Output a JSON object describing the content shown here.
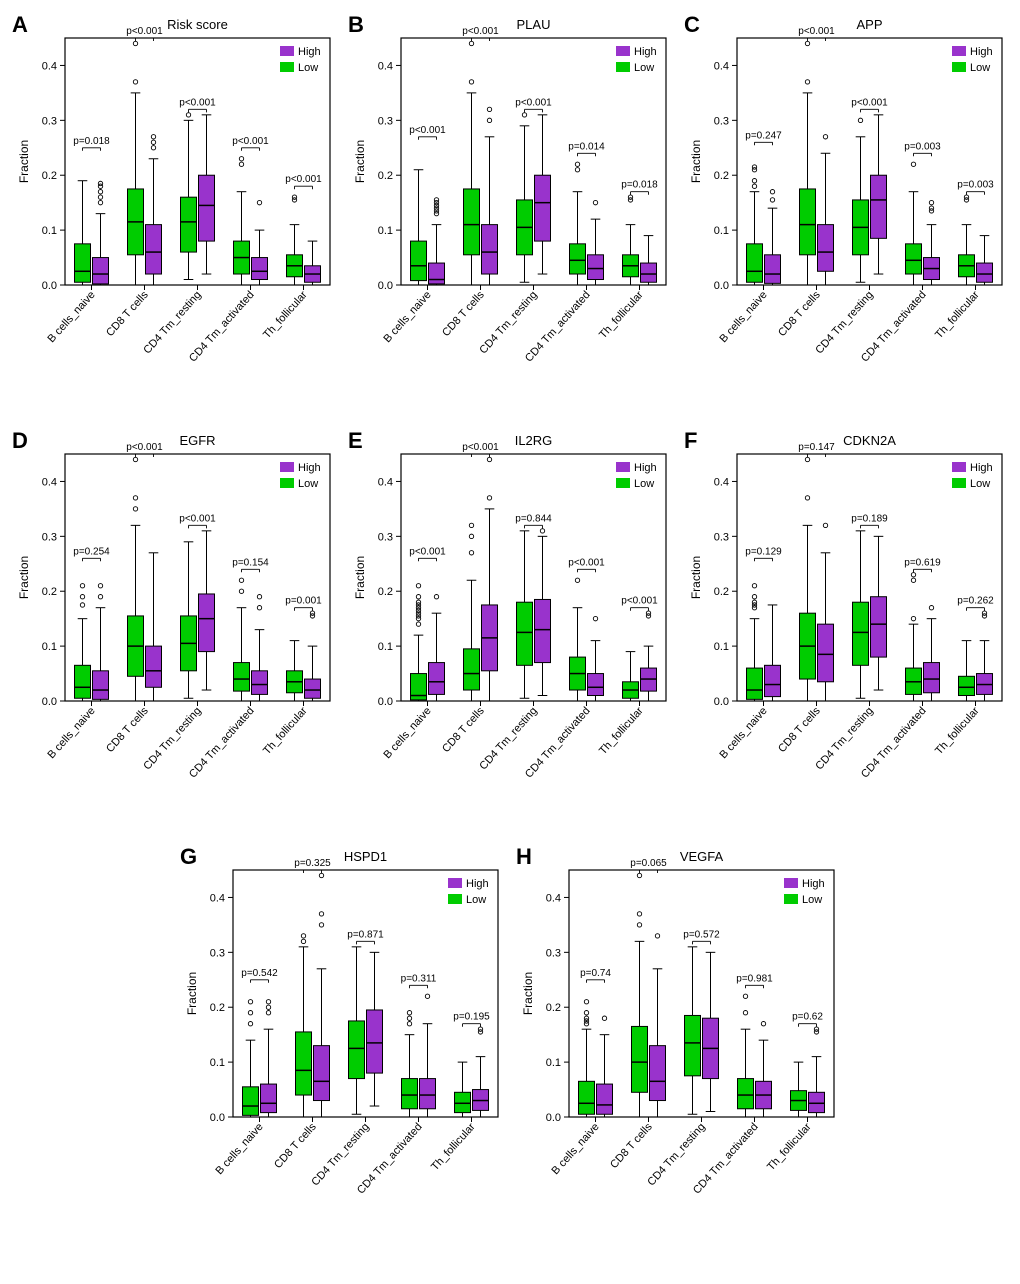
{
  "global": {
    "categories": [
      "B cells_naive",
      "CD8 T cells",
      "CD4 Tm_resting",
      "CD4 Tm_activated",
      "Th_follicular"
    ],
    "ylabel": "Fraction",
    "ylim": [
      0,
      0.45
    ],
    "yticks": [
      0.0,
      0.1,
      0.2,
      0.3,
      0.4
    ],
    "ytick_labels": [
      "0.0",
      "0.1",
      "0.2",
      "0.3",
      "0.4"
    ],
    "legend_labels": [
      "High",
      "Low"
    ],
    "colors": {
      "high": "#9933cc",
      "low": "#00cc00",
      "axis": "#000000",
      "bg": "#ffffff"
    },
    "label_fontsize": 12,
    "tick_fontsize": 11,
    "title_fontsize": 13,
    "pvalue_fontsize": 10
  },
  "panels": [
    {
      "id": "A",
      "title": "Risk score",
      "legend_order": [
        "high",
        "low"
      ],
      "pvalues": [
        "p=0.018",
        "p<0.001",
        "p<0.001",
        "p<0.001",
        "p<0.001"
      ],
      "pvalue_y": [
        0.25,
        0.45,
        0.32,
        0.25,
        0.18
      ],
      "low": [
        {
          "q1": 0.005,
          "med": 0.025,
          "q3": 0.075,
          "lw": 0,
          "uw": 0.19,
          "out": []
        },
        {
          "q1": 0.055,
          "med": 0.115,
          "q3": 0.175,
          "lw": 0,
          "uw": 0.35,
          "out": [
            0.37,
            0.44
          ]
        },
        {
          "q1": 0.06,
          "med": 0.115,
          "q3": 0.16,
          "lw": 0.01,
          "uw": 0.3,
          "out": [
            0.31
          ]
        },
        {
          "q1": 0.02,
          "med": 0.05,
          "q3": 0.08,
          "lw": 0,
          "uw": 0.17,
          "out": [
            0.22,
            0.23
          ]
        },
        {
          "q1": 0.015,
          "med": 0.035,
          "q3": 0.055,
          "lw": 0,
          "uw": 0.11,
          "out": [
            0.16,
            0.155
          ]
        }
      ],
      "high": [
        {
          "q1": 0.002,
          "med": 0.02,
          "q3": 0.05,
          "lw": 0,
          "uw": 0.13,
          "out": [
            0.15,
            0.16,
            0.17,
            0.18,
            0.185
          ]
        },
        {
          "q1": 0.02,
          "med": 0.06,
          "q3": 0.11,
          "lw": 0,
          "uw": 0.23,
          "out": [
            0.25,
            0.26,
            0.27
          ]
        },
        {
          "q1": 0.08,
          "med": 0.145,
          "q3": 0.2,
          "lw": 0.02,
          "uw": 0.31,
          "out": []
        },
        {
          "q1": 0.01,
          "med": 0.025,
          "q3": 0.05,
          "lw": 0,
          "uw": 0.1,
          "out": [
            0.15
          ]
        },
        {
          "q1": 0.005,
          "med": 0.02,
          "q3": 0.035,
          "lw": 0,
          "uw": 0.08,
          "out": []
        }
      ]
    },
    {
      "id": "B",
      "title": "PLAU",
      "legend_order": [
        "high",
        "low"
      ],
      "pvalues": [
        "p<0.001",
        "p<0.001",
        "p<0.001",
        "p=0.014",
        "p=0.018"
      ],
      "pvalue_y": [
        0.27,
        0.45,
        0.32,
        0.24,
        0.17
      ],
      "low": [
        {
          "q1": 0.008,
          "med": 0.035,
          "q3": 0.08,
          "lw": 0,
          "uw": 0.21,
          "out": []
        },
        {
          "q1": 0.055,
          "med": 0.11,
          "q3": 0.175,
          "lw": 0,
          "uw": 0.35,
          "out": [
            0.37,
            0.44
          ]
        },
        {
          "q1": 0.055,
          "med": 0.105,
          "q3": 0.155,
          "lw": 0.005,
          "uw": 0.29,
          "out": [
            0.31
          ]
        },
        {
          "q1": 0.02,
          "med": 0.045,
          "q3": 0.075,
          "lw": 0,
          "uw": 0.17,
          "out": [
            0.22,
            0.21
          ]
        },
        {
          "q1": 0.015,
          "med": 0.035,
          "q3": 0.055,
          "lw": 0,
          "uw": 0.11,
          "out": [
            0.155,
            0.16
          ]
        }
      ],
      "high": [
        {
          "q1": 0.002,
          "med": 0.01,
          "q3": 0.04,
          "lw": 0,
          "uw": 0.11,
          "out": [
            0.135,
            0.14,
            0.15,
            0.145,
            0.155,
            0.13
          ]
        },
        {
          "q1": 0.02,
          "med": 0.06,
          "q3": 0.11,
          "lw": 0,
          "uw": 0.27,
          "out": [
            0.3,
            0.32
          ]
        },
        {
          "q1": 0.08,
          "med": 0.15,
          "q3": 0.2,
          "lw": 0.02,
          "uw": 0.31,
          "out": []
        },
        {
          "q1": 0.01,
          "med": 0.03,
          "q3": 0.055,
          "lw": 0,
          "uw": 0.12,
          "out": [
            0.15
          ]
        },
        {
          "q1": 0.005,
          "med": 0.02,
          "q3": 0.04,
          "lw": 0,
          "uw": 0.09,
          "out": []
        }
      ]
    },
    {
      "id": "C",
      "title": "APP",
      "legend_order": [
        "high",
        "low"
      ],
      "pvalues": [
        "p=0.247",
        "p<0.001",
        "p<0.001",
        "p=0.003",
        "p=0.003"
      ],
      "pvalue_y": [
        0.26,
        0.45,
        0.32,
        0.24,
        0.17
      ],
      "low": [
        {
          "q1": 0.005,
          "med": 0.025,
          "q3": 0.075,
          "lw": 0,
          "uw": 0.17,
          "out": [
            0.19,
            0.18,
            0.215,
            0.21
          ]
        },
        {
          "q1": 0.055,
          "med": 0.11,
          "q3": 0.175,
          "lw": 0,
          "uw": 0.35,
          "out": [
            0.37,
            0.44
          ]
        },
        {
          "q1": 0.055,
          "med": 0.105,
          "q3": 0.155,
          "lw": 0.005,
          "uw": 0.27,
          "out": [
            0.3
          ]
        },
        {
          "q1": 0.02,
          "med": 0.045,
          "q3": 0.075,
          "lw": 0,
          "uw": 0.17,
          "out": [
            0.22
          ]
        },
        {
          "q1": 0.015,
          "med": 0.035,
          "q3": 0.055,
          "lw": 0,
          "uw": 0.11,
          "out": [
            0.155,
            0.16
          ]
        }
      ],
      "high": [
        {
          "q1": 0.003,
          "med": 0.02,
          "q3": 0.055,
          "lw": 0,
          "uw": 0.14,
          "out": [
            0.155,
            0.17
          ]
        },
        {
          "q1": 0.025,
          "med": 0.06,
          "q3": 0.11,
          "lw": 0,
          "uw": 0.24,
          "out": [
            0.27
          ]
        },
        {
          "q1": 0.085,
          "med": 0.155,
          "q3": 0.2,
          "lw": 0.02,
          "uw": 0.31,
          "out": []
        },
        {
          "q1": 0.01,
          "med": 0.03,
          "q3": 0.05,
          "lw": 0,
          "uw": 0.11,
          "out": [
            0.135,
            0.14,
            0.15
          ]
        },
        {
          "q1": 0.005,
          "med": 0.02,
          "q3": 0.04,
          "lw": 0,
          "uw": 0.09,
          "out": []
        }
      ]
    },
    {
      "id": "D",
      "title": "EGFR",
      "legend_order": [
        "high",
        "low"
      ],
      "pvalues": [
        "p=0.254",
        "p<0.001",
        "p<0.001",
        "p=0.154",
        "p=0.001"
      ],
      "pvalue_y": [
        0.26,
        0.45,
        0.32,
        0.24,
        0.17
      ],
      "low": [
        {
          "q1": 0.005,
          "med": 0.025,
          "q3": 0.065,
          "lw": 0,
          "uw": 0.15,
          "out": [
            0.19,
            0.175,
            0.21
          ]
        },
        {
          "q1": 0.045,
          "med": 0.1,
          "q3": 0.155,
          "lw": 0,
          "uw": 0.32,
          "out": [
            0.37,
            0.44,
            0.35
          ]
        },
        {
          "q1": 0.055,
          "med": 0.105,
          "q3": 0.155,
          "lw": 0.005,
          "uw": 0.29,
          "out": []
        },
        {
          "q1": 0.018,
          "med": 0.04,
          "q3": 0.07,
          "lw": 0,
          "uw": 0.17,
          "out": [
            0.2,
            0.22
          ]
        },
        {
          "q1": 0.015,
          "med": 0.035,
          "q3": 0.055,
          "lw": 0,
          "uw": 0.11,
          "out": []
        }
      ],
      "high": [
        {
          "q1": 0.003,
          "med": 0.02,
          "q3": 0.055,
          "lw": 0,
          "uw": 0.17,
          "out": [
            0.19,
            0.21
          ]
        },
        {
          "q1": 0.025,
          "med": 0.055,
          "q3": 0.1,
          "lw": 0,
          "uw": 0.27,
          "out": []
        },
        {
          "q1": 0.09,
          "med": 0.15,
          "q3": 0.195,
          "lw": 0.02,
          "uw": 0.31,
          "out": []
        },
        {
          "q1": 0.012,
          "med": 0.03,
          "q3": 0.055,
          "lw": 0,
          "uw": 0.13,
          "out": [
            0.17,
            0.19
          ]
        },
        {
          "q1": 0.005,
          "med": 0.02,
          "q3": 0.04,
          "lw": 0,
          "uw": 0.1,
          "out": [
            0.155,
            0.16
          ]
        }
      ]
    },
    {
      "id": "E",
      "title": "IL2RG",
      "legend_order": [
        "high",
        "low"
      ],
      "pvalues": [
        "p<0.001",
        "p<0.001",
        "p=0.844",
        "p<0.001",
        "p<0.001"
      ],
      "pvalue_y": [
        0.26,
        0.45,
        0.32,
        0.24,
        0.17
      ],
      "low": [
        {
          "q1": 0.002,
          "med": 0.01,
          "q3": 0.05,
          "lw": 0,
          "uw": 0.12,
          "out": [
            0.14,
            0.15,
            0.16,
            0.17,
            0.18,
            0.19,
            0.21,
            0.155,
            0.165,
            0.175
          ]
        },
        {
          "q1": 0.02,
          "med": 0.05,
          "q3": 0.095,
          "lw": 0,
          "uw": 0.22,
          "out": [
            0.27,
            0.3,
            0.32
          ]
        },
        {
          "q1": 0.065,
          "med": 0.125,
          "q3": 0.18,
          "lw": 0.005,
          "uw": 0.31,
          "out": []
        },
        {
          "q1": 0.02,
          "med": 0.05,
          "q3": 0.08,
          "lw": 0,
          "uw": 0.17,
          "out": [
            0.22
          ]
        },
        {
          "q1": 0.005,
          "med": 0.02,
          "q3": 0.035,
          "lw": 0,
          "uw": 0.09,
          "out": []
        }
      ],
      "high": [
        {
          "q1": 0.012,
          "med": 0.035,
          "q3": 0.07,
          "lw": 0,
          "uw": 0.16,
          "out": [
            0.19
          ]
        },
        {
          "q1": 0.055,
          "med": 0.115,
          "q3": 0.175,
          "lw": 0,
          "uw": 0.35,
          "out": [
            0.37,
            0.44
          ]
        },
        {
          "q1": 0.07,
          "med": 0.13,
          "q3": 0.185,
          "lw": 0.01,
          "uw": 0.3,
          "out": [
            0.31
          ]
        },
        {
          "q1": 0.01,
          "med": 0.025,
          "q3": 0.05,
          "lw": 0,
          "uw": 0.11,
          "out": [
            0.15
          ]
        },
        {
          "q1": 0.018,
          "med": 0.04,
          "q3": 0.06,
          "lw": 0,
          "uw": 0.1,
          "out": [
            0.155,
            0.16
          ]
        }
      ]
    },
    {
      "id": "F",
      "title": "CDKN2A",
      "legend_order": [
        "high",
        "low"
      ],
      "pvalues": [
        "p=0.129",
        "p=0.147",
        "p=0.189",
        "p=0.619",
        "p=0.262"
      ],
      "pvalue_y": [
        0.26,
        0.45,
        0.32,
        0.24,
        0.17
      ],
      "low": [
        {
          "q1": 0.003,
          "med": 0.02,
          "q3": 0.06,
          "lw": 0,
          "uw": 0.15,
          "out": [
            0.17,
            0.18,
            0.19,
            0.21,
            0.175
          ]
        },
        {
          "q1": 0.04,
          "med": 0.1,
          "q3": 0.16,
          "lw": 0,
          "uw": 0.32,
          "out": [
            0.37,
            0.44
          ]
        },
        {
          "q1": 0.065,
          "med": 0.125,
          "q3": 0.18,
          "lw": 0.005,
          "uw": 0.31,
          "out": []
        },
        {
          "q1": 0.012,
          "med": 0.035,
          "q3": 0.06,
          "lw": 0,
          "uw": 0.14,
          "out": [
            0.22,
            0.23,
            0.15
          ]
        },
        {
          "q1": 0.01,
          "med": 0.025,
          "q3": 0.045,
          "lw": 0,
          "uw": 0.11,
          "out": []
        }
      ],
      "high": [
        {
          "q1": 0.008,
          "med": 0.03,
          "q3": 0.065,
          "lw": 0,
          "uw": 0.175,
          "out": []
        },
        {
          "q1": 0.035,
          "med": 0.085,
          "q3": 0.14,
          "lw": 0,
          "uw": 0.27,
          "out": [
            0.32
          ]
        },
        {
          "q1": 0.08,
          "med": 0.14,
          "q3": 0.19,
          "lw": 0.02,
          "uw": 0.3,
          "out": []
        },
        {
          "q1": 0.015,
          "med": 0.04,
          "q3": 0.07,
          "lw": 0,
          "uw": 0.15,
          "out": [
            0.17
          ]
        },
        {
          "q1": 0.012,
          "med": 0.03,
          "q3": 0.05,
          "lw": 0,
          "uw": 0.11,
          "out": [
            0.155,
            0.16
          ]
        }
      ]
    },
    {
      "id": "G",
      "title": "HSPD1",
      "legend_order": [
        "high",
        "low"
      ],
      "pvalues": [
        "p=0.542",
        "p=0.325",
        "p=0.871",
        "p=0.311",
        "p=0.195"
      ],
      "pvalue_y": [
        0.25,
        0.45,
        0.32,
        0.24,
        0.17
      ],
      "low": [
        {
          "q1": 0.003,
          "med": 0.02,
          "q3": 0.055,
          "lw": 0,
          "uw": 0.14,
          "out": [
            0.17,
            0.19,
            0.21
          ]
        },
        {
          "q1": 0.04,
          "med": 0.085,
          "q3": 0.155,
          "lw": 0,
          "uw": 0.31,
          "out": [
            0.32,
            0.33
          ]
        },
        {
          "q1": 0.07,
          "med": 0.125,
          "q3": 0.175,
          "lw": 0.005,
          "uw": 0.31,
          "out": []
        },
        {
          "q1": 0.015,
          "med": 0.04,
          "q3": 0.07,
          "lw": 0,
          "uw": 0.15,
          "out": [
            0.17,
            0.18,
            0.19
          ]
        },
        {
          "q1": 0.008,
          "med": 0.025,
          "q3": 0.045,
          "lw": 0,
          "uw": 0.1,
          "out": []
        }
      ],
      "high": [
        {
          "q1": 0.008,
          "med": 0.025,
          "q3": 0.06,
          "lw": 0,
          "uw": 0.16,
          "out": [
            0.19,
            0.2,
            0.21
          ]
        },
        {
          "q1": 0.03,
          "med": 0.065,
          "q3": 0.13,
          "lw": 0,
          "uw": 0.27,
          "out": [
            0.35,
            0.37,
            0.44
          ]
        },
        {
          "q1": 0.08,
          "med": 0.135,
          "q3": 0.195,
          "lw": 0.02,
          "uw": 0.3,
          "out": []
        },
        {
          "q1": 0.015,
          "med": 0.04,
          "q3": 0.07,
          "lw": 0,
          "uw": 0.17,
          "out": [
            0.22
          ]
        },
        {
          "q1": 0.012,
          "med": 0.03,
          "q3": 0.05,
          "lw": 0,
          "uw": 0.11,
          "out": [
            0.155,
            0.16
          ]
        }
      ]
    },
    {
      "id": "H",
      "title": "VEGFA",
      "legend_order": [
        "high",
        "low"
      ],
      "pvalues": [
        "p=0.74",
        "p=0.065",
        "p=0.572",
        "p=0.981",
        "p=0.62"
      ],
      "pvalue_y": [
        0.25,
        0.45,
        0.32,
        0.24,
        0.17
      ],
      "low": [
        {
          "q1": 0.005,
          "med": 0.025,
          "q3": 0.065,
          "lw": 0,
          "uw": 0.16,
          "out": [
            0.18,
            0.19,
            0.21,
            0.17,
            0.175
          ]
        },
        {
          "q1": 0.045,
          "med": 0.1,
          "q3": 0.165,
          "lw": 0,
          "uw": 0.32,
          "out": [
            0.37,
            0.44,
            0.35
          ]
        },
        {
          "q1": 0.075,
          "med": 0.135,
          "q3": 0.185,
          "lw": 0.005,
          "uw": 0.31,
          "out": []
        },
        {
          "q1": 0.015,
          "med": 0.04,
          "q3": 0.07,
          "lw": 0,
          "uw": 0.16,
          "out": [
            0.22,
            0.19
          ]
        },
        {
          "q1": 0.012,
          "med": 0.03,
          "q3": 0.048,
          "lw": 0,
          "uw": 0.1,
          "out": []
        }
      ],
      "high": [
        {
          "q1": 0.005,
          "med": 0.022,
          "q3": 0.06,
          "lw": 0,
          "uw": 0.15,
          "out": [
            0.18
          ]
        },
        {
          "q1": 0.03,
          "med": 0.065,
          "q3": 0.13,
          "lw": 0,
          "uw": 0.27,
          "out": [
            0.33
          ]
        },
        {
          "q1": 0.07,
          "med": 0.125,
          "q3": 0.18,
          "lw": 0.01,
          "uw": 0.3,
          "out": []
        },
        {
          "q1": 0.015,
          "med": 0.04,
          "q3": 0.065,
          "lw": 0,
          "uw": 0.14,
          "out": [
            0.17
          ]
        },
        {
          "q1": 0.008,
          "med": 0.025,
          "q3": 0.045,
          "lw": 0,
          "uw": 0.11,
          "out": [
            0.155,
            0.16
          ]
        }
      ]
    }
  ]
}
